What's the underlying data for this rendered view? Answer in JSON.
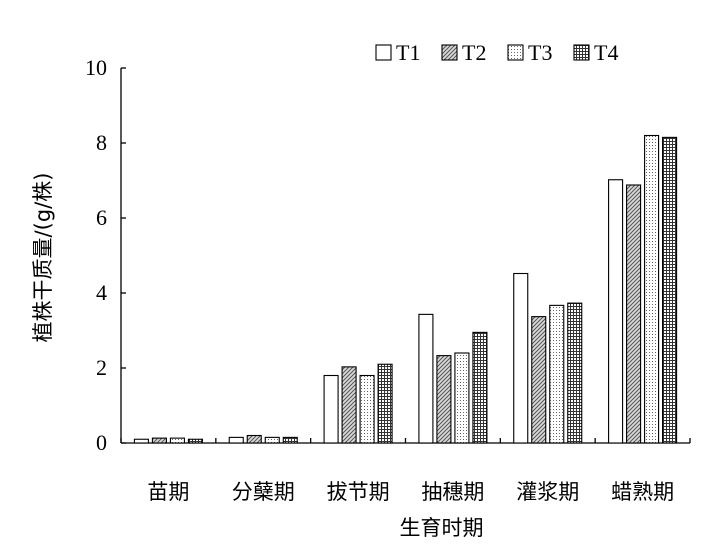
{
  "chart_data": {
    "type": "bar",
    "categories": [
      "苗期",
      "分蘖期",
      "拔节期",
      "抽穗期",
      "灌浆期",
      "蜡熟期"
    ],
    "series": [
      {
        "name": "T1",
        "values": [
          0.1,
          0.15,
          1.8,
          3.43,
          4.52,
          7.02
        ],
        "pattern": "white"
      },
      {
        "name": "T2",
        "values": [
          0.13,
          0.2,
          2.03,
          2.33,
          3.37,
          6.88
        ],
        "pattern": "diagonal"
      },
      {
        "name": "T3",
        "values": [
          0.13,
          0.15,
          1.8,
          2.4,
          3.67,
          8.2
        ],
        "pattern": "dots"
      },
      {
        "name": "T4",
        "values": [
          0.1,
          0.15,
          2.1,
          2.95,
          3.73,
          8.15
        ],
        "pattern": "grid"
      }
    ],
    "xlabel": "生育时期",
    "ylabel": "植株干质量/(g/株)",
    "ylim": [
      0,
      10
    ],
    "yticks": [
      0,
      2,
      4,
      6,
      8,
      10
    ],
    "legend_position": "top-right",
    "grid": false
  }
}
